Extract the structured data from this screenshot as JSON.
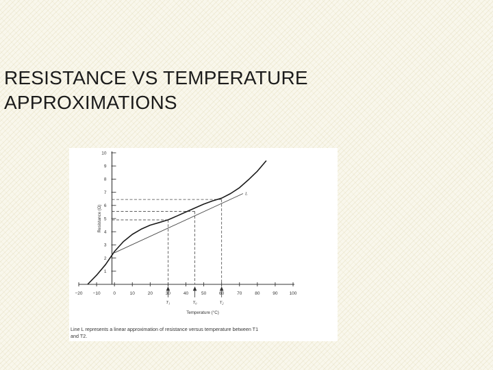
{
  "slide": {
    "title_line1": "RESISTANCE VS TEMPERATURE",
    "title_line2": "APPROXIMATIONS"
  },
  "chart_data": {
    "type": "line",
    "xlabel": "Temperature (°C)",
    "ylabel": "Resistance (Ω)",
    "xlim": [
      -20,
      100
    ],
    "ylim": [
      0,
      10
    ],
    "x_ticks": [
      -20,
      -10,
      0,
      10,
      20,
      30,
      40,
      50,
      60,
      70,
      80,
      90,
      100
    ],
    "y_ticks": [
      1,
      2,
      3,
      4,
      5,
      6,
      7,
      8,
      9,
      10
    ],
    "series": [
      {
        "x": [
          -15,
          -10,
          -5,
          0,
          5,
          10,
          15,
          20,
          25,
          30,
          35,
          40,
          45,
          50,
          55,
          60,
          65,
          70,
          75,
          80,
          85
        ],
        "y": [
          0.0,
          0.7,
          1.5,
          2.5,
          3.25,
          3.8,
          4.2,
          4.5,
          4.7,
          4.9,
          5.2,
          5.5,
          5.8,
          6.1,
          6.35,
          6.55,
          6.9,
          7.35,
          7.95,
          8.6,
          9.4
        ]
      },
      {
        "name": "L",
        "x": [
          0,
          72
        ],
        "y": [
          2.4,
          6.9
        ]
      }
    ],
    "reference_points": [
      {
        "label": "T1",
        "x": 30,
        "y": 4.9
      },
      {
        "label": "T0",
        "x": 45,
        "y": 5.55
      },
      {
        "label": "T2",
        "x": 60,
        "y": 6.45
      }
    ],
    "caption_lines": [
      "Line L represents a linear approximation of resistance versus temperature between T1",
      "and T2."
    ]
  }
}
